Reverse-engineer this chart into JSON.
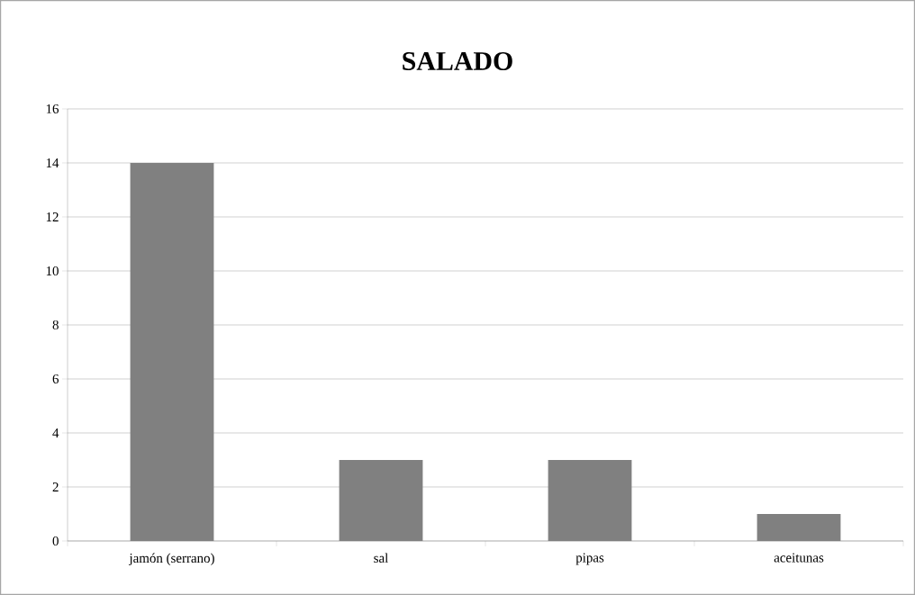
{
  "chart_data": {
    "type": "bar",
    "title": "SALADO",
    "categories": [
      "jamón (serrano)",
      "sal",
      "pipas",
      "aceitunas"
    ],
    "values": [
      14,
      3,
      3,
      1
    ],
    "color": "#808080",
    "ylim": [
      0,
      16
    ],
    "yticks": [
      0,
      2,
      4,
      6,
      8,
      10,
      12,
      14,
      16
    ],
    "grid": "y"
  }
}
